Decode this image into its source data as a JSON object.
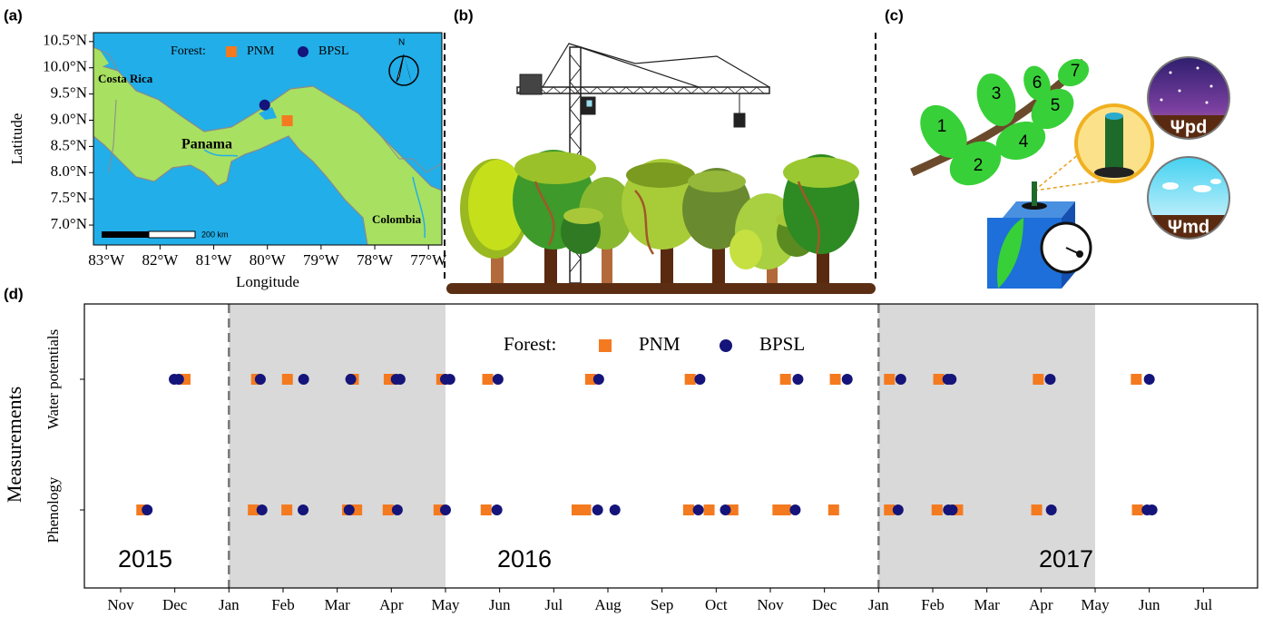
{
  "panel_labels": [
    "(a)",
    "(b)",
    "(c)",
    "(d)"
  ],
  "panel_c": {
    "leaf_numbers": [
      "1",
      "2",
      "3",
      "4",
      "5",
      "6",
      "7"
    ],
    "psi_labels": [
      "Ψpd",
      "Ψmd"
    ]
  },
  "chart_data": [
    {
      "type": "map",
      "xlabel": "Longitude",
      "ylabel": "Latitude",
      "xlim": [
        -83.24,
        -76.75
      ],
      "ylim": [
        6.62,
        10.67
      ],
      "xticks": [
        {
          "value": -83,
          "label": "83°W"
        },
        {
          "value": -82,
          "label": "82°W"
        },
        {
          "value": -81,
          "label": "81°W"
        },
        {
          "value": -80,
          "label": "80°W"
        },
        {
          "value": -79,
          "label": "79°W"
        },
        {
          "value": -78,
          "label": "78°W"
        },
        {
          "value": -77,
          "label": "77°W"
        }
      ],
      "yticks": [
        {
          "value": 7.0,
          "label": "7.0°N"
        },
        {
          "value": 7.5,
          "label": "7.5°N"
        },
        {
          "value": 8.0,
          "label": "8.0°N"
        },
        {
          "value": 8.5,
          "label": "8.5°N"
        },
        {
          "value": 9.0,
          "label": "9.0°N"
        },
        {
          "value": 9.5,
          "label": "9.5°N"
        },
        {
          "value": 10.0,
          "label": "10.0°N"
        },
        {
          "value": 10.5,
          "label": "10.5°N"
        }
      ],
      "legend_title": "Forest:",
      "series": [
        {
          "name": "PNM",
          "color": "#f47a20",
          "marker": "square",
          "x": [
            -79.63
          ],
          "values": [
            8.99
          ]
        },
        {
          "name": "BPSL",
          "color": "#14147a",
          "marker": "circle",
          "x": [
            -80.05
          ],
          "values": [
            9.29
          ]
        }
      ],
      "annotations": [
        "Costa Rica",
        "Panama",
        "Colombia"
      ],
      "scale_bar": "200 km",
      "north": "N"
    },
    {
      "type": "timeline",
      "ylabel": "Measurements",
      "y_categories": [
        "Phenology",
        "Water potentials"
      ],
      "xlim": [
        -0.67,
        21.0
      ],
      "xticks": [
        {
          "value": 0,
          "label": "Nov"
        },
        {
          "value": 1,
          "label": "Dec"
        },
        {
          "value": 2,
          "label": "Jan"
        },
        {
          "value": 3,
          "label": "Feb"
        },
        {
          "value": 4,
          "label": "Mar"
        },
        {
          "value": 5,
          "label": "Apr"
        },
        {
          "value": 6,
          "label": "May"
        },
        {
          "value": 7,
          "label": "Jun"
        },
        {
          "value": 8,
          "label": "Jul"
        },
        {
          "value": 9,
          "label": "Aug"
        },
        {
          "value": 10,
          "label": "Sep"
        },
        {
          "value": 11,
          "label": "Oct"
        },
        {
          "value": 12,
          "label": "Nov"
        },
        {
          "value": 13,
          "label": "Dec"
        },
        {
          "value": 14,
          "label": "Jan"
        },
        {
          "value": 15,
          "label": "Feb"
        },
        {
          "value": 16,
          "label": "Mar"
        },
        {
          "value": 17,
          "label": "Apr"
        },
        {
          "value": 18,
          "label": "May"
        },
        {
          "value": 19,
          "label": "Jun"
        },
        {
          "value": 20,
          "label": "Jul"
        }
      ],
      "legend_title": "Forest:",
      "series": [
        {
          "name": "PNM",
          "color": "#f47a20",
          "marker": "square",
          "values": [
            [
              0.39,
              2.45,
              3.07,
              4.19,
              4.36,
              4.94,
              5.88,
              6.75,
              8.43,
              8.59,
              10.49,
              10.87,
              11.31,
              12.14,
              12.28,
              13.17,
              14.2,
              15.08,
              15.46,
              16.92,
              18.78
            ],
            [
              1.19,
              2.51,
              3.08,
              4.3,
              4.96,
              5.93,
              6.78,
              8.68,
              10.52,
              12.28,
              13.2,
              14.2,
              15.11,
              16.95,
              18.76
            ]
          ]
        },
        {
          "name": "BPSL",
          "color": "#14147a",
          "marker": "circle",
          "values": [
            [
              0.49,
              2.61,
              3.37,
              4.22,
              5.11,
              6.0,
              6.95,
              8.81,
              9.13,
              10.67,
              11.17,
              12.46,
              14.36,
              15.29,
              15.36,
              17.19,
              18.96,
              19.05
            ],
            [
              0.99,
              1.07,
              2.58,
              3.38,
              4.25,
              5.09,
              5.16,
              6.0,
              6.08,
              6.97,
              8.83,
              10.7,
              12.51,
              13.42,
              14.41,
              15.28,
              15.34,
              17.17,
              19.0
            ]
          ]
        }
      ],
      "shaded_ranges": [
        [
          2,
          6
        ],
        [
          14,
          18
        ]
      ],
      "dashed_lines": [
        2,
        14
      ],
      "annotations": [
        "2015",
        "2016",
        "2017"
      ]
    }
  ]
}
